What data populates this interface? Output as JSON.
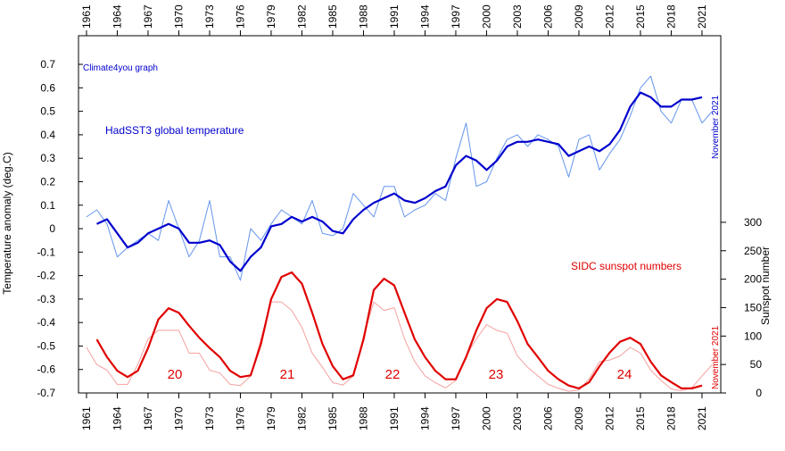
{
  "chart_data": {
    "type": "line",
    "watermark": "Climate4you graph",
    "ylabel": "Temperature anomaly (deg.C)",
    "y2label": "Sunspot number",
    "annotations": [
      "November 2021",
      "November 2021"
    ],
    "cycle_labels": [
      "20",
      "21",
      "22",
      "23",
      "24"
    ],
    "xlim": [
      1960.22,
      2022.83
    ],
    "xticks": [
      1961,
      1964,
      1967,
      1970,
      1973,
      1976,
      1979,
      1982,
      1985,
      1988,
      1991,
      1994,
      1997,
      2000,
      2003,
      2006,
      2009,
      2012,
      2015,
      2018,
      2021
    ],
    "ylim": [
      -0.7,
      0.822
    ],
    "yticks": [
      -0.7,
      -0.6,
      -0.5,
      -0.4,
      -0.3,
      -0.2,
      -0.1,
      0,
      0.1,
      0.2,
      0.3,
      0.4,
      0.5,
      0.6,
      0.7
    ],
    "y2lim": [
      0,
      628
    ],
    "y2ticks": [
      0,
      50,
      100,
      150,
      200,
      250,
      300
    ],
    "series": [
      {
        "color": "#6495ed",
        "width": 1,
        "x": [
          1961,
          1962,
          1963,
          1964,
          1965,
          1966,
          1967,
          1968,
          1969,
          1970,
          1971,
          1972,
          1973,
          1974,
          1975,
          1976,
          1977,
          1978,
          1979,
          1980,
          1981,
          1982,
          1983,
          1984,
          1985,
          1986,
          1987,
          1988,
          1989,
          1990,
          1991,
          1992,
          1993,
          1994,
          1995,
          1996,
          1997,
          1998,
          1999,
          2000,
          2001,
          2002,
          2003,
          2004,
          2005,
          2006,
          2007,
          2008,
          2009,
          2010,
          2011,
          2012,
          2013,
          2014,
          2015,
          2016,
          2017,
          2018,
          2019,
          2020,
          2021,
          2022
        ],
        "values": [
          0.05,
          0.08,
          0.02,
          -0.12,
          -0.08,
          -0.05,
          -0.02,
          -0.05,
          0.12,
          0.0,
          -0.12,
          -0.05,
          0.12,
          -0.12,
          -0.12,
          -0.22,
          0.0,
          -0.05,
          0.02,
          0.08,
          0.05,
          0.02,
          0.12,
          -0.02,
          -0.03,
          0.0,
          0.15,
          0.1,
          0.05,
          0.18,
          0.18,
          0.05,
          0.08,
          0.1,
          0.15,
          0.12,
          0.3,
          0.45,
          0.18,
          0.2,
          0.3,
          0.38,
          0.4,
          0.35,
          0.4,
          0.38,
          0.35,
          0.22,
          0.38,
          0.4,
          0.25,
          0.32,
          0.38,
          0.48,
          0.6,
          0.65,
          0.5,
          0.45,
          0.55,
          0.55,
          0.45,
          0.5
        ]
      },
      {
        "name": "HadSST3 global temperature",
        "color": "#0000cd",
        "width": 2.2,
        "x": [
          1962,
          1963,
          1964,
          1965,
          1966,
          1967,
          1968,
          1969,
          1970,
          1971,
          1972,
          1973,
          1974,
          1975,
          1976,
          1977,
          1978,
          1979,
          1980,
          1981,
          1982,
          1983,
          1984,
          1985,
          1986,
          1987,
          1988,
          1989,
          1990,
          1991,
          1992,
          1993,
          1994,
          1995,
          1996,
          1997,
          1998,
          1999,
          2000,
          2001,
          2002,
          2003,
          2004,
          2005,
          2006,
          2007,
          2008,
          2009,
          2010,
          2011,
          2012,
          2013,
          2014,
          2015,
          2016,
          2017,
          2018,
          2019,
          2020,
          2021
        ],
        "values": [
          0.02,
          0.04,
          -0.02,
          -0.08,
          -0.06,
          -0.02,
          0.0,
          0.02,
          0.0,
          -0.06,
          -0.06,
          -0.05,
          -0.07,
          -0.14,
          -0.18,
          -0.12,
          -0.08,
          0.01,
          0.02,
          0.05,
          0.03,
          0.05,
          0.03,
          -0.01,
          -0.02,
          0.04,
          0.08,
          0.11,
          0.13,
          0.15,
          0.12,
          0.11,
          0.13,
          0.16,
          0.18,
          0.27,
          0.31,
          0.29,
          0.25,
          0.29,
          0.35,
          0.37,
          0.37,
          0.38,
          0.37,
          0.36,
          0.31,
          0.33,
          0.35,
          0.33,
          0.36,
          0.42,
          0.52,
          0.58,
          0.56,
          0.52,
          0.52,
          0.55,
          0.55,
          0.56
        ]
      },
      {
        "axis": "y2",
        "color": "#f4a0a0",
        "width": 1,
        "x": [
          1961,
          1962,
          1963,
          1964,
          1965,
          1966,
          1967,
          1968,
          1969,
          1970,
          1971,
          1972,
          1973,
          1974,
          1975,
          1976,
          1977,
          1978,
          1979,
          1980,
          1981,
          1982,
          1983,
          1984,
          1985,
          1986,
          1987,
          1988,
          1989,
          1990,
          1991,
          1992,
          1993,
          1994,
          1995,
          1996,
          1997,
          1998,
          1999,
          2000,
          2001,
          2002,
          2003,
          2004,
          2005,
          2006,
          2007,
          2008,
          2009,
          2010,
          2011,
          2012,
          2013,
          2014,
          2015,
          2016,
          2017,
          2018,
          2019,
          2020,
          2021,
          2022
        ],
        "values": [
          80,
          50,
          40,
          15,
          15,
          50,
          95,
          110,
          110,
          110,
          70,
          70,
          40,
          35,
          15,
          13,
          30,
          95,
          160,
          160,
          145,
          115,
          70,
          45,
          18,
          14,
          30,
          100,
          160,
          145,
          150,
          95,
          55,
          30,
          18,
          9,
          22,
          65,
          95,
          120,
          110,
          105,
          65,
          45,
          30,
          15,
          8,
          3,
          5,
          25,
          55,
          58,
          65,
          80,
          70,
          40,
          22,
          7,
          4,
          9,
          30,
          50
        ]
      },
      {
        "name": "SIDC sunspot numbers",
        "axis": "y2",
        "color": "#e00000",
        "width": 2.2,
        "x": [
          1962,
          1963,
          1964,
          1965,
          1966,
          1967,
          1968,
          1969,
          1970,
          1971,
          1972,
          1973,
          1974,
          1975,
          1976,
          1977,
          1978,
          1979,
          1980,
          1981,
          1982,
          1983,
          1984,
          1985,
          1986,
          1987,
          1988,
          1989,
          1990,
          1991,
          1992,
          1993,
          1994,
          1995,
          1996,
          1997,
          1998,
          1999,
          2000,
          2001,
          2002,
          2003,
          2004,
          2005,
          2006,
          2007,
          2008,
          2009,
          2010,
          2011,
          2012,
          2013,
          2014,
          2015,
          2016,
          2017,
          2018,
          2019,
          2020,
          2021
        ],
        "values": [
          94,
          63,
          39,
          28,
          39,
          79,
          129,
          149,
          141,
          118,
          97,
          79,
          63,
          39,
          28,
          31,
          86,
          165,
          204,
          212,
          192,
          141,
          86,
          47,
          24,
          31,
          94,
          181,
          201,
          189,
          141,
          94,
          63,
          39,
          24,
          24,
          63,
          110,
          149,
          165,
          160,
          126,
          86,
          63,
          39,
          24,
          13,
          8,
          19,
          47,
          71,
          90,
          97,
          86,
          55,
          31,
          19,
          8,
          8,
          13
        ]
      }
    ]
  }
}
